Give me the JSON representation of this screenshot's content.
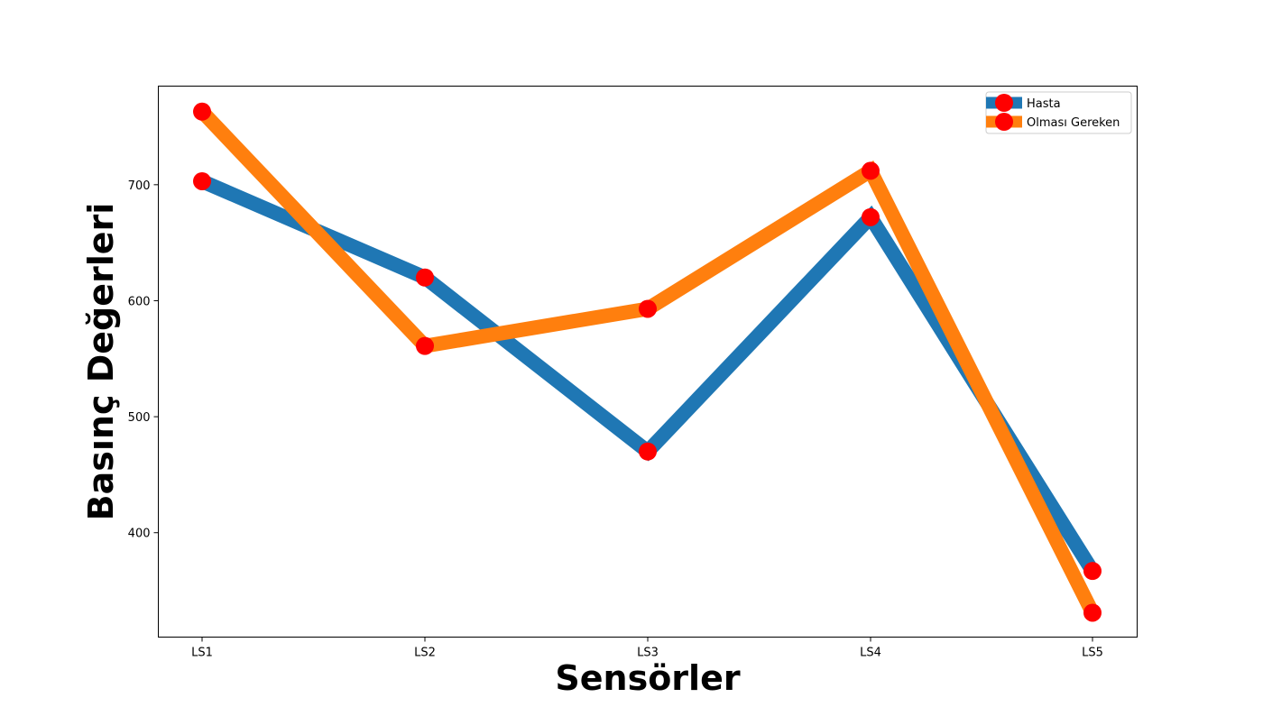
{
  "chart_data": {
    "type": "line",
    "categories": [
      "LS1",
      "LS2",
      "LS3",
      "LS4",
      "LS5"
    ],
    "series": [
      {
        "name": "Hasta",
        "values": [
          703,
          620,
          470,
          672,
          367
        ],
        "color": "#1f77b4"
      },
      {
        "name": "Olması Gereken",
        "values": [
          763,
          561,
          593,
          712,
          331
        ],
        "color": "#ff7f0e"
      }
    ],
    "marker_color": "#ff0000",
    "xlabel": "Sensörler",
    "ylabel": "Basınç Değerleri",
    "ylim": [
      310,
      785
    ],
    "yticks": [
      400,
      500,
      600,
      700
    ],
    "legend_position": "top-right",
    "grid": false
  }
}
